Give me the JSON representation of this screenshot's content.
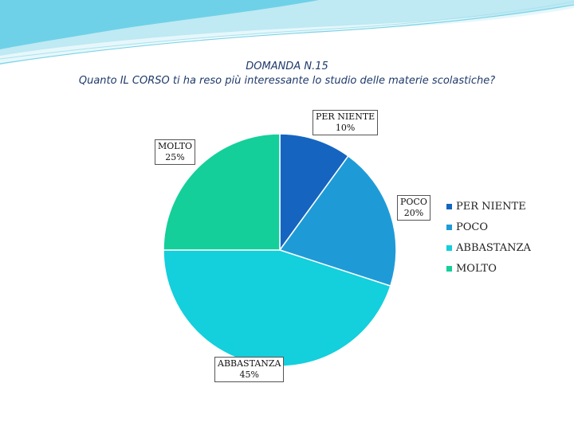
{
  "slide": {
    "title_line1": "DOMANDA N.15",
    "title_line2": "Quanto IL CORSO ti ha reso più interessante lo studio delle materie scolastiche?"
  },
  "chart_data": {
    "type": "pie",
    "title": "",
    "slices": [
      {
        "label": "PER NIENTE",
        "value": 10,
        "display": "10%",
        "color": "#1565c0"
      },
      {
        "label": "POCO",
        "value": 20,
        "display": "20%",
        "color": "#1e9bd7"
      },
      {
        "label": "ABBASTANZA",
        "value": 45,
        "display": "45%",
        "color": "#14cfdc"
      },
      {
        "label": "MOLTO",
        "value": 25,
        "display": "25%",
        "color": "#14cf9a"
      }
    ],
    "start_angle": "12 o'clock",
    "direction": "clockwise",
    "legend_placement": "right"
  }
}
